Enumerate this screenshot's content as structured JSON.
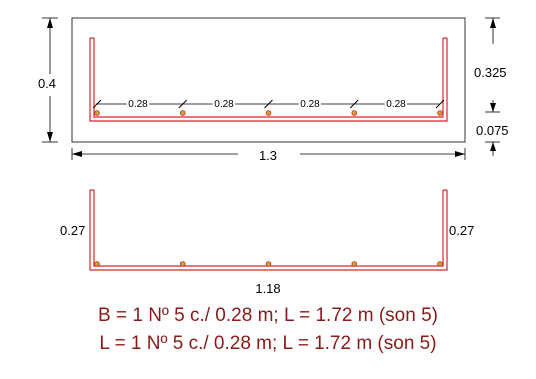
{
  "colors": {
    "rebar": "#d9262f",
    "outline": "#333333",
    "caption": "#8b1a1a",
    "bar_dot": "#c8a030"
  },
  "section": {
    "height_label": "0.4",
    "width_label": "1.3",
    "top_cover_label": "0.325",
    "bottom_cover_label": "0.075",
    "spacing_labels": [
      "0.28",
      "0.28",
      "0.28",
      "0.28"
    ],
    "bar_count": 5
  },
  "bar_shape": {
    "left_leg_label": "0.27",
    "right_leg_label": "0.27",
    "bottom_label": "1.18",
    "bar_count": 5
  },
  "captions": {
    "line1": "B = 1 Nº 5 c./ 0.28 m; L = 1.72 m (son 5)",
    "line2": "L = 1 Nº 5 c./ 0.28 m; L = 1.72 m (son 5)"
  }
}
